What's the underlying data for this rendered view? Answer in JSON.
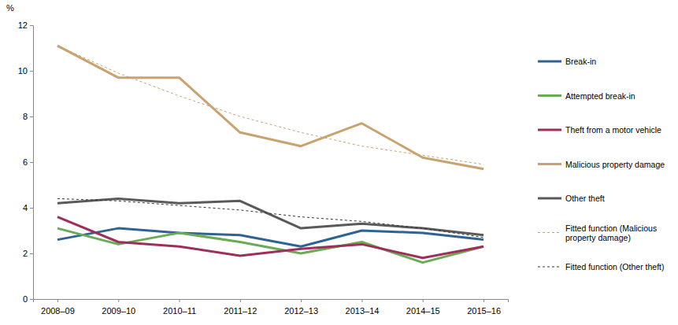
{
  "chart_data": {
    "type": "line",
    "y_label": "%",
    "categories": [
      "2008–09",
      "2009–10",
      "2010–11",
      "2011–12",
      "2012–13",
      "2013–14",
      "2014–15",
      "2015–16"
    ],
    "ylim": [
      0,
      12
    ],
    "yticks": [
      0,
      2,
      4,
      6,
      8,
      10,
      12
    ],
    "legend": "right",
    "grid": false,
    "series": [
      {
        "name": "Break-in",
        "color": "#2f6393",
        "line_style": "solid",
        "values": [
          2.6,
          3.1,
          2.9,
          2.8,
          2.3,
          3.0,
          2.9,
          2.6
        ]
      },
      {
        "name": "Attempted break-in",
        "color": "#6aab55",
        "line_style": "solid",
        "values": [
          3.1,
          2.4,
          2.9,
          2.5,
          2.0,
          2.5,
          1.6,
          2.3
        ]
      },
      {
        "name": "Theft from a motor vehicle",
        "color": "#9e2f5a",
        "line_style": "solid",
        "values": [
          3.6,
          2.5,
          2.3,
          1.9,
          2.2,
          2.4,
          1.8,
          2.3
        ]
      },
      {
        "name": "Malicious property damage",
        "color": "#c9a26f",
        "line_style": "solid",
        "values": [
          11.1,
          9.7,
          9.7,
          7.3,
          6.7,
          7.7,
          6.2,
          5.7
        ]
      },
      {
        "name": "Other theft",
        "color": "#5a5a5a",
        "line_style": "solid",
        "values": [
          4.2,
          4.4,
          4.2,
          4.3,
          3.1,
          3.3,
          3.1,
          2.8
        ]
      },
      {
        "name": "Fitted function (Malicious property damage)",
        "color": "#c9a26f",
        "line_style": "dashed",
        "values": [
          11.1,
          9.9,
          8.9,
          8.0,
          7.3,
          6.7,
          6.3,
          5.9
        ]
      },
      {
        "name": "Fitted function (Other theft)",
        "color": "#333333",
        "line_style": "dashed",
        "values": [
          4.4,
          4.3,
          4.1,
          3.9,
          3.6,
          3.4,
          3.1,
          2.7
        ]
      }
    ]
  }
}
